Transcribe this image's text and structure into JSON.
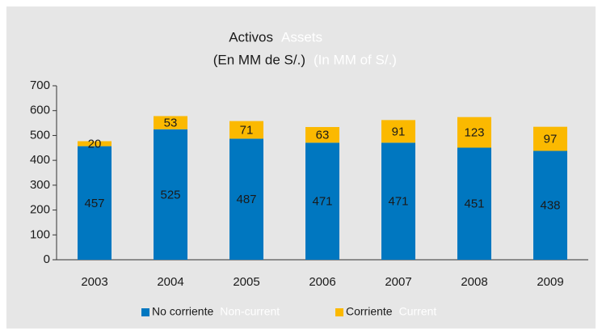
{
  "chart_data": {
    "type": "stacked_bar",
    "title": "Activos",
    "title_en": "Assets",
    "subtitle": "(En MM de S/.)",
    "subtitle_en": "(In MM of S/.)",
    "categories": [
      "2003",
      "2004",
      "2005",
      "2006",
      "2007",
      "2008",
      "2009"
    ],
    "series": [
      {
        "name": "No corriente",
        "name_en": "Non-current",
        "color": "#0077c0",
        "values": [
          457,
          525,
          487,
          471,
          471,
          451,
          438
        ]
      },
      {
        "name": "Corriente",
        "name_en": "Current",
        "color": "#fbb900",
        "values": [
          20,
          53,
          71,
          63,
          91,
          123,
          97
        ]
      }
    ],
    "ylim": [
      0,
      700
    ],
    "yticks": [
      0,
      100,
      200,
      300,
      400,
      500,
      600,
      700
    ],
    "legend": "bottom"
  }
}
